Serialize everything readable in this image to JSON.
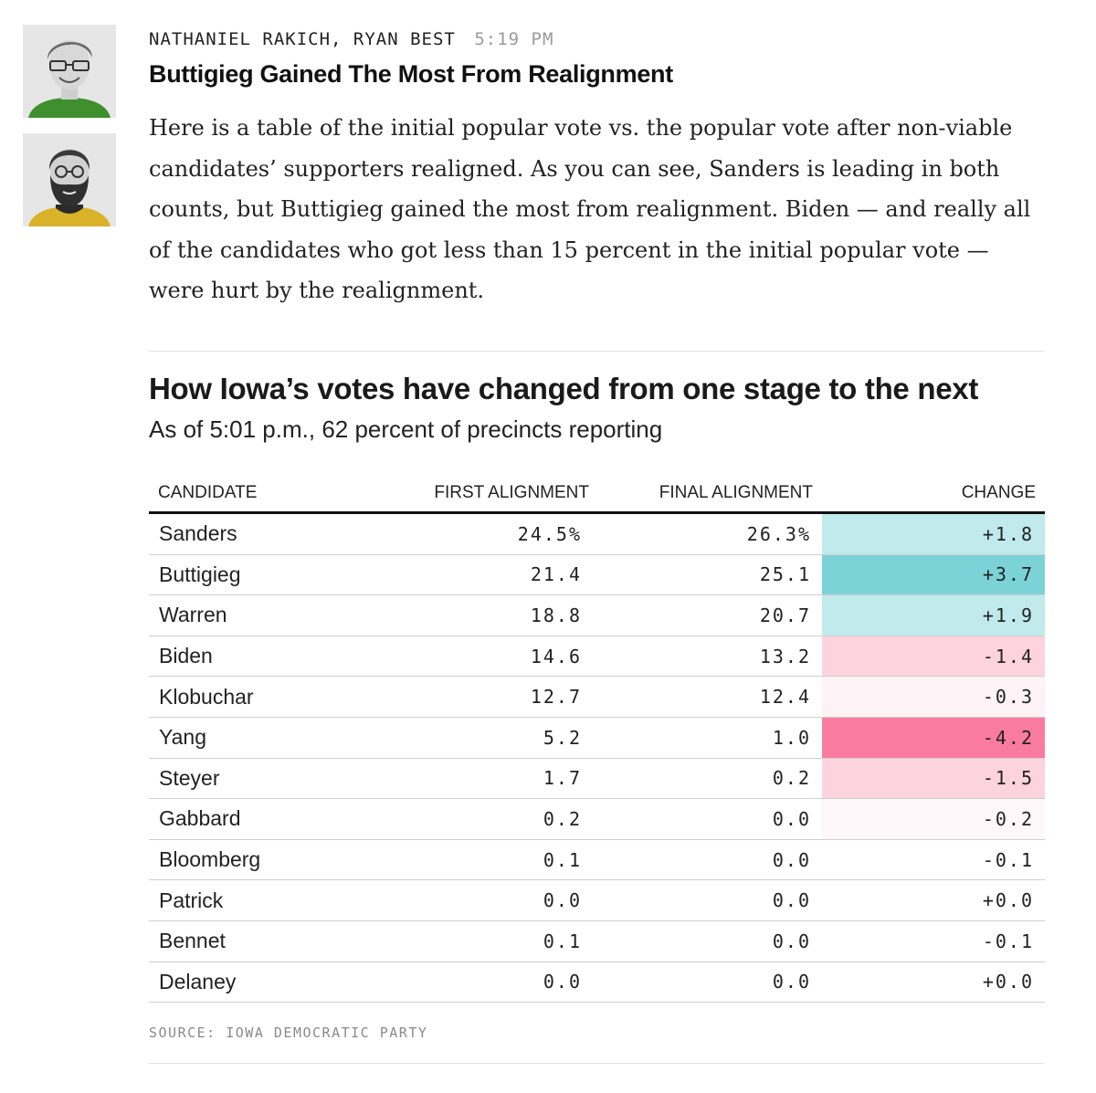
{
  "post": {
    "authors": [
      "NATHANIEL RAKICH,",
      "RYAN BEST"
    ],
    "time": "5:19 PM",
    "headline": "Buttigieg Gained The Most From Realignment",
    "body": "Here is a table of the initial popular vote vs. the popular vote after non-viable candidates’ supporters realigned. As you can see, Sanders is leading in both counts, but Buttigieg gained the most from realignment. Biden — and really all of the candidates who got less than 15 percent in the initial popular vote — were hurt by the realignment."
  },
  "table": {
    "title": "How Iowa’s votes have changed from one stage to the next",
    "subtitle": "As of 5:01 p.m., 62 percent of precincts reporting",
    "columns": {
      "candidate": "CANDIDATE",
      "first": "FIRST ALIGNMENT",
      "final": "FINAL ALIGNMENT",
      "change": "CHANGE"
    },
    "rows": [
      {
        "candidate": "Sanders",
        "first": "24.5%",
        "final": "26.3%",
        "change": "+1.8",
        "color": "#c0eaec"
      },
      {
        "candidate": "Buttigieg",
        "first": "21.4",
        "final": "25.1",
        "change": "+3.7",
        "color": "#7bd3d8"
      },
      {
        "candidate": "Warren",
        "first": "18.8",
        "final": "20.7",
        "change": "+1.9",
        "color": "#c0eaec"
      },
      {
        "candidate": "Biden",
        "first": "14.6",
        "final": "13.2",
        "change": "-1.4",
        "color": "#fcd3de"
      },
      {
        "candidate": "Klobuchar",
        "first": "12.7",
        "final": "12.4",
        "change": "-0.3",
        "color": "#fdf3f6"
      },
      {
        "candidate": "Yang",
        "first": "5.2",
        "final": "1.0",
        "change": "-4.2",
        "color": "#fa7ba0"
      },
      {
        "candidate": "Steyer",
        "first": "1.7",
        "final": "0.2",
        "change": "-1.5",
        "color": "#fcd3de"
      },
      {
        "candidate": "Gabbard",
        "first": "0.2",
        "final": "0.0",
        "change": "-0.2",
        "color": "#fef7f9"
      },
      {
        "candidate": "Bloomberg",
        "first": "0.1",
        "final": "0.0",
        "change": "-0.1",
        "color": "#ffffff"
      },
      {
        "candidate": "Patrick",
        "first": "0.0",
        "final": "0.0",
        "change": "+0.0",
        "color": "#ffffff"
      },
      {
        "candidate": "Bennet",
        "first": "0.1",
        "final": "0.0",
        "change": "-0.1",
        "color": "#ffffff"
      },
      {
        "candidate": "Delaney",
        "first": "0.0",
        "final": "0.0",
        "change": "+0.0",
        "color": "#ffffff"
      }
    ],
    "source": "SOURCE: IOWA DEMOCRATIC PARTY"
  }
}
